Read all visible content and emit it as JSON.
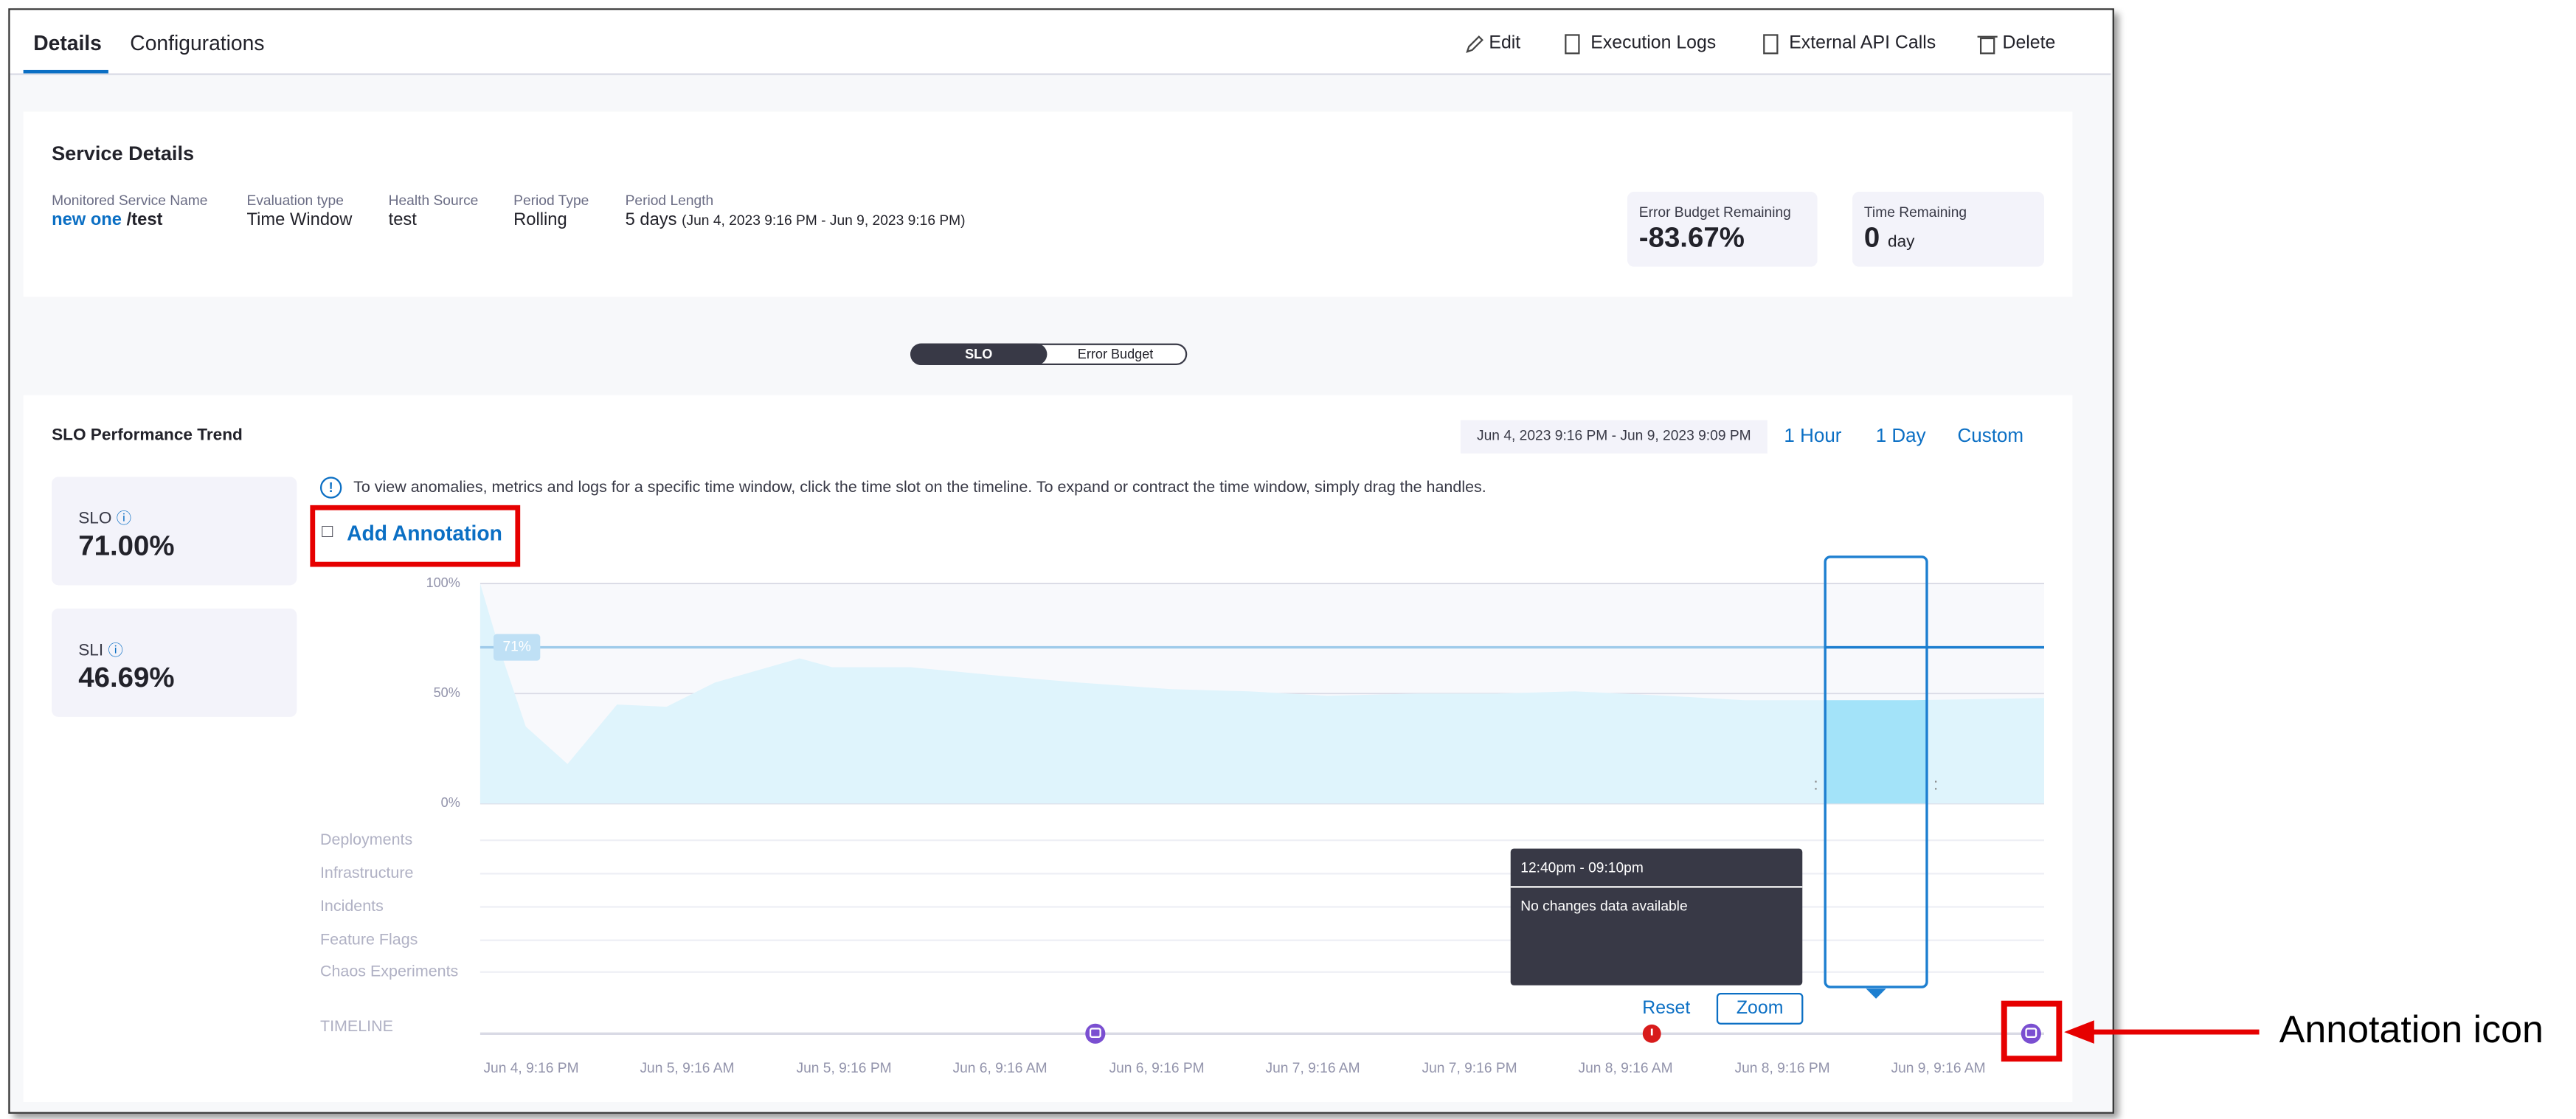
{
  "tabs": [
    "Details",
    "Configurations"
  ],
  "actions": [
    "Edit",
    "Execution Logs",
    "External API Calls",
    "Delete"
  ],
  "service_details": {
    "title": "Service Details",
    "fields": [
      {
        "label": "Monitored Service Name",
        "value": "new one",
        "suffix": "/test"
      },
      {
        "label": "Evaluation type",
        "value": "Time Window"
      },
      {
        "label": "Health Source",
        "value": "test"
      },
      {
        "label": "Period Type",
        "value": "Rolling"
      },
      {
        "label": "Period Length",
        "value": "5 days",
        "suffix": "(Jun 4, 2023 9:16 PM - Jun 9, 2023 9:16 PM)"
      }
    ],
    "error_budget": {
      "label": "Error Budget Remaining",
      "value": "-83.67%"
    },
    "time_remaining": {
      "label": "Time Remaining",
      "value": "0",
      "unit": "day"
    }
  },
  "toggle": [
    "SLO",
    "Error Budget"
  ],
  "trend": {
    "title": "SLO Performance Trend",
    "range": "Jun 4, 2023 9:16 PM - Jun 9, 2023 9:09 PM",
    "buttons": [
      "1 Hour",
      "1 Day",
      "Custom"
    ],
    "info": "To view anomalies, metrics and logs for a specific time window, click the time slot on the timeline. To expand or contract the time window, simply drag the handles.",
    "add_annotation": "Add Annotation",
    "slo": {
      "label": "SLO",
      "value": "71.00%"
    },
    "sli": {
      "label": "SLI",
      "value": "46.69%"
    }
  },
  "chart_data": {
    "type": "area",
    "color": "#dff4fc",
    "x": [
      0,
      1.5,
      3.5,
      6.7,
      10.5,
      14.3,
      18,
      24.5,
      27,
      33,
      40,
      46,
      53,
      59,
      65,
      72,
      78,
      84,
      91,
      97,
      104,
      110,
      120
    ],
    "values": [
      100,
      70,
      35,
      18,
      45,
      44,
      55,
      66,
      62,
      62,
      58,
      55,
      52,
      51,
      49,
      50,
      50,
      51,
      49,
      47,
      47,
      47,
      48
    ],
    "xlim": [
      0,
      120
    ],
    "ylim": [
      0,
      100
    ],
    "yticks": [
      {
        "value": 0,
        "label": "0%"
      },
      {
        "value": 50,
        "label": "50%"
      },
      {
        "value": 100,
        "label": "100%"
      }
    ],
    "xticks": [
      {
        "value": 0,
        "label": "Jun 4, 9:16 PM"
      },
      {
        "value": 12,
        "label": "Jun 5, 9:16 AM"
      },
      {
        "value": 24,
        "label": "Jun 5, 9:16 PM"
      },
      {
        "value": 36,
        "label": "Jun 6, 9:16 AM"
      },
      {
        "value": 48,
        "label": "Jun 6, 9:16 PM"
      },
      {
        "value": 60,
        "label": "Jun 7, 9:16 AM"
      },
      {
        "value": 72,
        "label": "Jun 7, 9:16 PM"
      },
      {
        "value": 84,
        "label": "Jun 8, 9:16 AM"
      },
      {
        "value": 96,
        "label": "Jun 8, 9:16 PM"
      },
      {
        "value": 108,
        "label": "Jun 9, 9:16 AM"
      }
    ],
    "target": {
      "value": 71,
      "label": "71%"
    },
    "selection": [
      103.2,
      111
    ],
    "rows": [
      "Deployments",
      "Infrastructure",
      "Incidents",
      "Feature Flags",
      "Chaos Experiments",
      "TIMELINE"
    ],
    "annotation_markers": [
      47.2,
      119
    ],
    "incident_markers": [
      89.9
    ],
    "tooltip": {
      "title": "12:40pm - 09:10pm",
      "text": "No changes data available"
    },
    "reset": "Reset",
    "zoom": "Zoom"
  },
  "callout": "Annotation icon"
}
